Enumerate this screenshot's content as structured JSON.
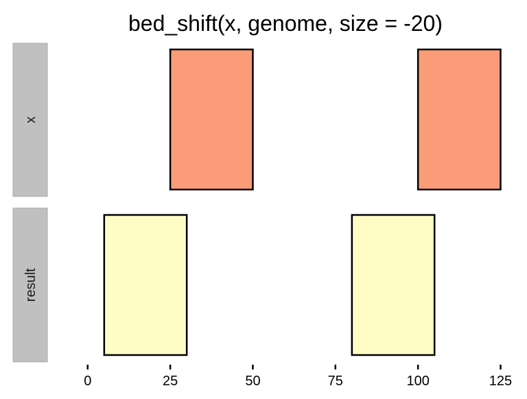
{
  "chart_data": {
    "type": "bar",
    "title": "bed_shift(x, genome, size = -20)",
    "xlabel": "",
    "ylabel": "",
    "xlim": [
      -12,
      133
    ],
    "x_ticks": [
      0,
      25,
      50,
      75,
      100,
      125
    ],
    "x_tick_labels": [
      "0",
      "25",
      "50",
      "75",
      "100",
      "125"
    ],
    "grid": false,
    "legend": "none",
    "panels": [
      {
        "label": "x",
        "fill": "#fa9c77",
        "intervals": [
          {
            "start": 25,
            "end": 50
          },
          {
            "start": 100,
            "end": 125
          }
        ]
      },
      {
        "label": "result",
        "fill": "#fffcc5",
        "intervals": [
          {
            "start": 5,
            "end": 30
          },
          {
            "start": 80,
            "end": 105
          }
        ]
      }
    ],
    "strip_color": "#c0c0c0",
    "stroke_color": "#000000"
  }
}
